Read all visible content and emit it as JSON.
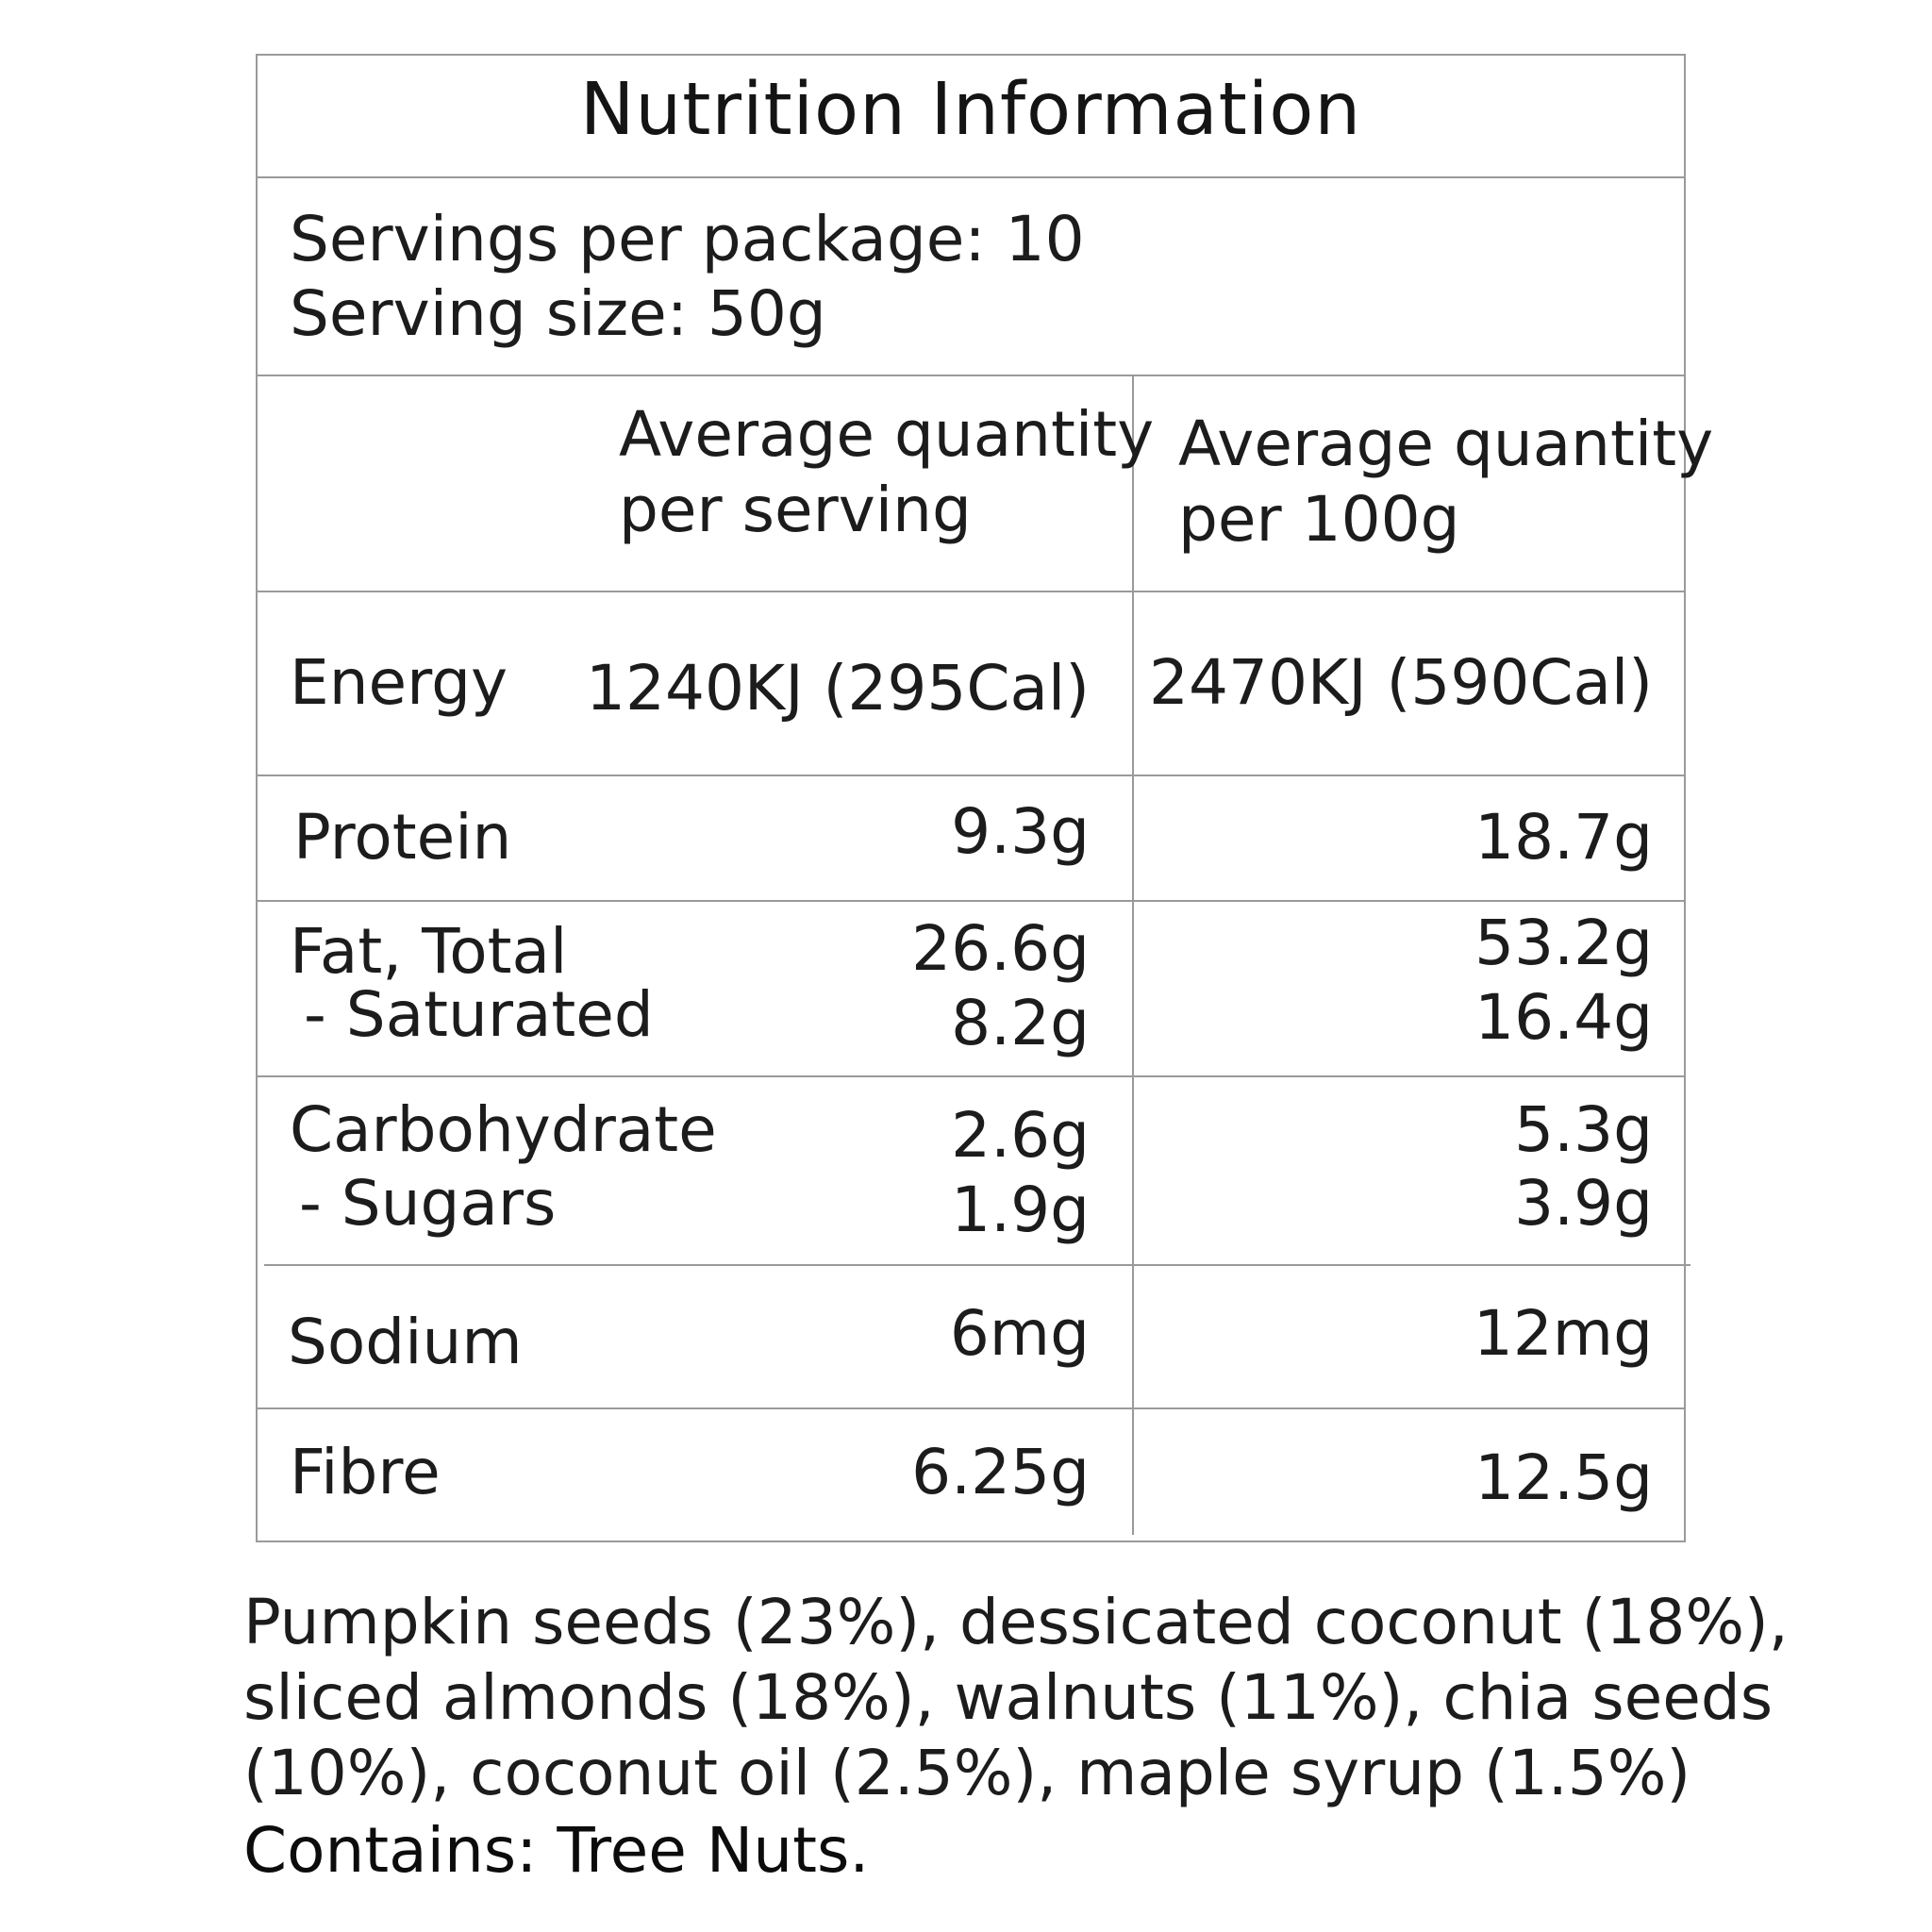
{
  "panel": {
    "title": "Nutrition Information",
    "servings_per_package": "Servings per package: 10",
    "serving_size": "Serving size: 50g",
    "headers": {
      "per_serving": [
        "Average quantity",
        "per serving"
      ],
      "per_100g": [
        "Average quantity",
        "per 100g"
      ]
    },
    "rows": {
      "energy": {
        "label": "Energy",
        "per_serving": "1240KJ (295Cal)",
        "per_100g": "2470KJ (590Cal)"
      },
      "protein": {
        "label": "Protein",
        "per_serving": "9.3g",
        "per_100g": "18.7g"
      },
      "fat": {
        "label": "Fat, Total",
        "per_serving": "26.6g",
        "per_100g": "53.2g"
      },
      "saturated": {
        "label": "- Saturated",
        "per_serving": "8.2g",
        "per_100g": "16.4g"
      },
      "carbohydrate": {
        "label": "Carbohydrate",
        "per_serving": "2.6g",
        "per_100g": "5.3g"
      },
      "sugars": {
        "label": "- Sugars",
        "per_serving": "1.9g",
        "per_100g": "3.9g"
      },
      "sodium": {
        "label": "Sodium",
        "per_serving": "6mg",
        "per_100g": "12mg"
      },
      "fibre": {
        "label": "Fibre",
        "per_serving": "6.25g",
        "per_100g": "12.5g"
      }
    }
  },
  "ingredients": {
    "lines": [
      "Pumpkin seeds (23%), dessicated coconut (18%),",
      "sliced almonds (18%), walnuts (11%),  chia seeds",
      "(10%), coconut oil (2.5%), maple syrup (1.5%)"
    ],
    "contains": "Contains: Tree Nuts."
  }
}
